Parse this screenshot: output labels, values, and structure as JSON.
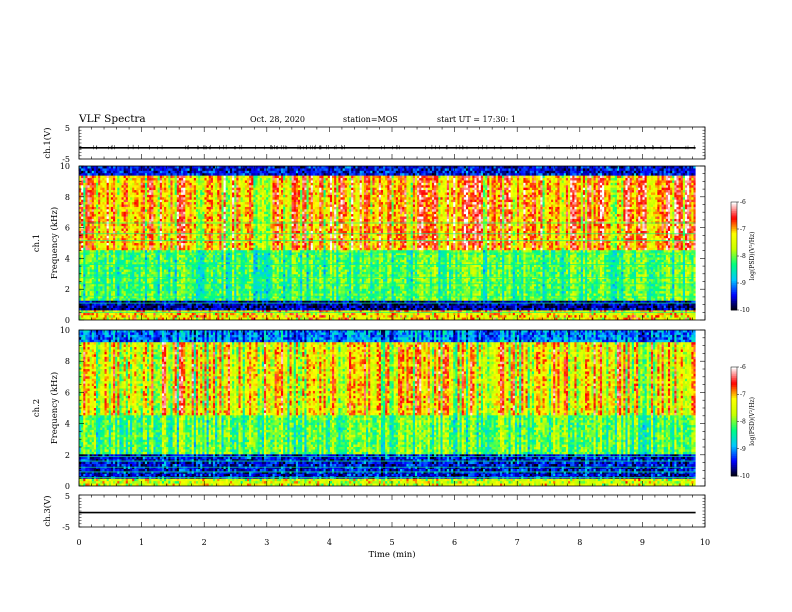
{
  "header": {
    "title": "VLF Spectra",
    "date": "Oct. 28, 2020",
    "station": "station=MOS",
    "start": "start UT =   17:30: 1"
  },
  "chart_data": {
    "type": "heatmap",
    "panels": [
      {
        "id": "ch1-waveform",
        "kind": "line",
        "ylabel": "ch.1(V)",
        "ylim": [
          -5,
          5
        ],
        "yticks": [
          5,
          -5
        ],
        "trace_level": -1.5
      },
      {
        "id": "ch1-spectrogram",
        "kind": "spectrogram",
        "ylabel_top": "ch.1",
        "ylabel": "Frequency (kHz)",
        "ylim": [
          0,
          10
        ],
        "yticks": [
          0,
          2,
          4,
          6,
          8,
          10
        ]
      },
      {
        "id": "ch2-spectrogram",
        "kind": "spectrogram",
        "ylabel_top": "ch.2",
        "ylabel": "Frequency (kHz)",
        "ylim": [
          0,
          10
        ],
        "yticks": [
          0,
          2,
          4,
          6,
          8,
          10
        ]
      },
      {
        "id": "ch3-waveform",
        "kind": "line",
        "ylabel": "ch.3(V)",
        "ylim": [
          -5,
          5
        ],
        "yticks": [
          5,
          -5
        ],
        "trace_level": -0.5
      }
    ],
    "x": {
      "label": "Time (min)",
      "range": [
        0,
        10
      ],
      "ticks": [
        0,
        1,
        2,
        3,
        4,
        5,
        6,
        7,
        8,
        9,
        10
      ],
      "data_end": 9.85
    },
    "colorbar": {
      "label": "log(PSD)(V²/Hz)",
      "range": [
        -10,
        -6
      ],
      "ticks": [
        -10,
        -9,
        -8,
        -7,
        -6
      ],
      "colors": [
        "#000000",
        "#0000ff",
        "#00c8ff",
        "#00ff7f",
        "#c8ff00",
        "#ffff00",
        "#ff0000",
        "#ffffff"
      ]
    },
    "spectra": {
      "ch1": {
        "line_freqs_khz": [
          0.5,
          1.1,
          1.55,
          1.95,
          2.35,
          2.75,
          3.6,
          4.35,
          5.15,
          5.6,
          6.3
        ]
      },
      "ch2": {
        "line_freqs_khz": [
          0.55,
          0.9,
          1.2,
          1.6,
          1.9
        ]
      }
    }
  }
}
